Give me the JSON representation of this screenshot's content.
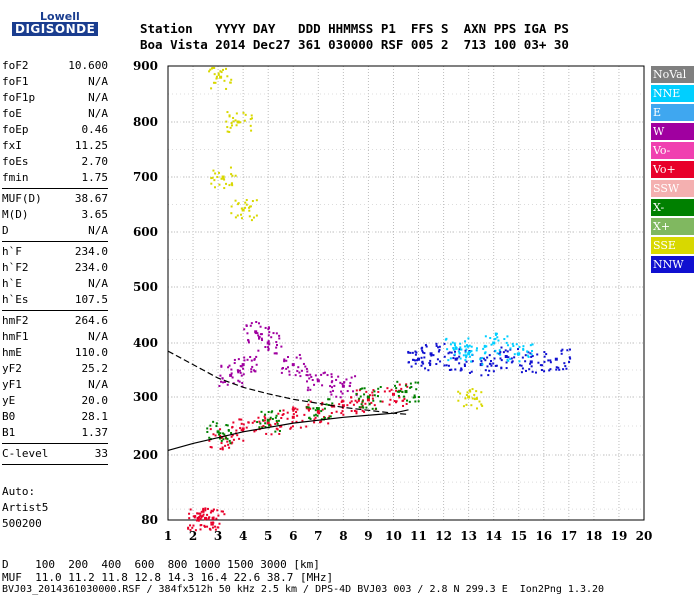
{
  "logo": {
    "top": "Lowell",
    "main": "DIGISONDE"
  },
  "header": {
    "row1": "Station   YYYY DAY   DDD HHMMSS P1  FFS S  AXN PPS IGA PS",
    "row2": "Boa Vista 2014 Dec27 361 030000 RSF 005 2  713 100 03+ 30"
  },
  "params_group1": [
    {
      "name": "foF2",
      "value": "10.600"
    },
    {
      "name": "foF1",
      "value": "N/A"
    },
    {
      "name": "foF1p",
      "value": "N/A"
    },
    {
      "name": "foE",
      "value": "N/A"
    },
    {
      "name": "foEp",
      "value": "0.46"
    },
    {
      "name": "fxI",
      "value": "11.25"
    },
    {
      "name": "foEs",
      "value": "2.70"
    },
    {
      "name": "fmin",
      "value": "1.75"
    }
  ],
  "params_group2": [
    {
      "name": "MUF(D)",
      "value": "38.67"
    },
    {
      "name": "M(D)",
      "value": "3.65"
    },
    {
      "name": "D",
      "value": "N/A"
    }
  ],
  "params_group3": [
    {
      "name": "h`F",
      "value": "234.0"
    },
    {
      "name": "h`F2",
      "value": "234.0"
    },
    {
      "name": "h`E",
      "value": "N/A"
    },
    {
      "name": "h`Es",
      "value": "107.5"
    }
  ],
  "params_group4": [
    {
      "name": "hmF2",
      "value": "264.6"
    },
    {
      "name": "hmF1",
      "value": "N/A"
    },
    {
      "name": "hmE",
      "value": "110.0"
    },
    {
      "name": "yF2",
      "value": "25.2"
    },
    {
      "name": "yF1",
      "value": "N/A"
    },
    {
      "name": "yE",
      "value": "20.0"
    },
    {
      "name": "B0",
      "value": "28.1"
    },
    {
      "name": "B1",
      "value": "1.37"
    }
  ],
  "params_group5": [
    {
      "name": "C-level",
      "value": "33"
    }
  ],
  "auto": {
    "line1": "Auto:",
    "line2": "Artist5",
    "line3": "500200"
  },
  "legend": [
    {
      "label": "NoVal",
      "color": "#7f7f7f"
    },
    {
      "label": "NNE",
      "color": "#00cfff"
    },
    {
      "label": "E",
      "color": "#3fa7f0"
    },
    {
      "label": "W",
      "color": "#a000a0"
    },
    {
      "label": "Vo-",
      "color": "#f040b0"
    },
    {
      "label": "Vo+",
      "color": "#e8002a"
    },
    {
      "label": "SSW",
      "color": "#f4b0b0"
    },
    {
      "label": "X-",
      "color": "#008000"
    },
    {
      "label": "X+",
      "color": "#80b860"
    },
    {
      "label": "SSE",
      "color": "#d8d800"
    },
    {
      "label": "NNW",
      "color": "#1010d0"
    }
  ],
  "footer": {
    "d_row": "D    100  200  400  600  800 1000 1500 3000 [km]",
    "muf_row": "MUF  11.0 11.2 11.8 12.8 14.3 16.4 22.6 38.7 [MHz]",
    "file_row": "BVJ03_2014361030000.RSF / 384fx512h 50 kHz 2.5 km / DPS-4D BVJ03 003 / 2.8 N 299.3 E  Ion2Png 1.3.20"
  },
  "chart_data": {
    "type": "scatter",
    "xlabel": "",
    "ylabel": "",
    "xlim": [
      1,
      20
    ],
    "ylim": [
      80,
      900
    ],
    "x_ticks": [
      1,
      2,
      3,
      4,
      5,
      6,
      7,
      8,
      9,
      10,
      11,
      12,
      13,
      14,
      15,
      16,
      17,
      18,
      19,
      20
    ],
    "y_ticks": [
      80,
      200,
      300,
      400,
      500,
      600,
      700,
      800,
      900
    ],
    "grid": true,
    "series": [
      {
        "name": "Vo+",
        "color": "#e8002a",
        "points": [
          [
            2.2,
            83
          ],
          [
            2.5,
            83
          ],
          [
            2.8,
            83
          ],
          [
            3.1,
            230
          ],
          [
            4,
            245
          ],
          [
            5,
            255
          ],
          [
            6,
            265
          ],
          [
            7,
            275
          ],
          [
            8,
            285
          ],
          [
            9,
            295
          ],
          [
            10,
            305
          ]
        ]
      },
      {
        "name": "NNW",
        "color": "#1010d0",
        "points": [
          [
            11,
            370
          ],
          [
            11.5,
            380
          ],
          [
            12.5,
            370
          ],
          [
            13.5,
            360
          ],
          [
            14.5,
            375
          ],
          [
            15.5,
            365
          ],
          [
            16.5,
            370
          ]
        ]
      },
      {
        "name": "W",
        "color": "#a000a0",
        "points": [
          [
            3.5,
            340
          ],
          [
            4,
            360
          ],
          [
            4.5,
            420
          ],
          [
            5,
            400
          ],
          [
            6,
            360
          ],
          [
            7,
            330
          ],
          [
            8,
            320
          ]
        ]
      },
      {
        "name": "NNE",
        "color": "#00cfff",
        "points": [
          [
            12.5,
            390
          ],
          [
            13,
            380
          ],
          [
            14,
            400
          ],
          [
            15,
            380
          ]
        ]
      },
      {
        "name": "X-",
        "color": "#008000",
        "points": [
          [
            3,
            240
          ],
          [
            5,
            260
          ],
          [
            7,
            280
          ],
          [
            9,
            300
          ],
          [
            10.5,
            310
          ]
        ]
      },
      {
        "name": "SSE",
        "color": "#d8d800",
        "points": [
          [
            3.1,
            880
          ],
          [
            3.2,
            700
          ],
          [
            3.8,
            800
          ],
          [
            4,
            640
          ],
          [
            13,
            300
          ]
        ]
      }
    ],
    "fit_curves": {
      "hprime": [
        [
          1,
          208
        ],
        [
          2,
          220
        ],
        [
          4,
          240
        ],
        [
          6,
          255
        ],
        [
          8,
          265
        ],
        [
          10,
          272
        ],
        [
          10.6,
          278
        ]
      ],
      "profile": [
        [
          1,
          385
        ],
        [
          2,
          360
        ],
        [
          3,
          335
        ],
        [
          4,
          318
        ],
        [
          5,
          306
        ],
        [
          6,
          296
        ],
        [
          8,
          282
        ],
        [
          10,
          272
        ],
        [
          10.6,
          270
        ]
      ]
    }
  }
}
